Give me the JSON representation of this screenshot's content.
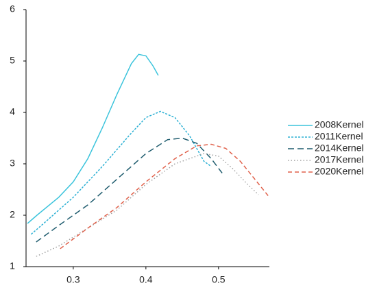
{
  "chart_data": {
    "type": "line",
    "xlim": [
      0.235,
      0.57
    ],
    "xticks": [
      0.3,
      0.4,
      0.5
    ],
    "ylim": [
      1,
      6
    ],
    "yticks": [
      1,
      2,
      3,
      4,
      5,
      6
    ],
    "grid": false,
    "legend": "right",
    "series": [
      {
        "name": "2008Kernel",
        "color": "#3cc4dc",
        "dash": "solid",
        "x": [
          0.237,
          0.25,
          0.28,
          0.3,
          0.32,
          0.34,
          0.36,
          0.38,
          0.39,
          0.4,
          0.41,
          0.417
        ],
        "values": [
          1.84,
          2.0,
          2.35,
          2.65,
          3.1,
          3.7,
          4.35,
          4.95,
          5.13,
          5.1,
          4.9,
          4.72
        ]
      },
      {
        "name": "2011Kernel",
        "color": "#2bb0d4",
        "dash": "3,2",
        "x": [
          0.242,
          0.26,
          0.3,
          0.34,
          0.38,
          0.4,
          0.42,
          0.44,
          0.46,
          0.48,
          0.49
        ],
        "values": [
          1.63,
          1.85,
          2.35,
          2.95,
          3.6,
          3.9,
          4.02,
          3.9,
          3.55,
          3.05,
          2.95
        ]
      },
      {
        "name": "2014Kernel",
        "color": "#1f5c6e",
        "dash": "9,5",
        "x": [
          0.249,
          0.28,
          0.32,
          0.36,
          0.4,
          0.43,
          0.45,
          0.47,
          0.49,
          0.505
        ],
        "values": [
          1.48,
          1.8,
          2.2,
          2.7,
          3.2,
          3.47,
          3.5,
          3.4,
          3.1,
          2.82
        ]
      },
      {
        "name": "2017Kernel",
        "color": "#a0a0a0",
        "dash": "1.5,3",
        "x": [
          0.249,
          0.28,
          0.32,
          0.36,
          0.4,
          0.44,
          0.48,
          0.5,
          0.52,
          0.54,
          0.555
        ],
        "values": [
          1.2,
          1.4,
          1.75,
          2.1,
          2.6,
          3.0,
          3.2,
          3.15,
          2.9,
          2.6,
          2.4
        ]
      },
      {
        "name": "2020Kernel",
        "color": "#e0604a",
        "dash": "6,4",
        "x": [
          0.282,
          0.32,
          0.36,
          0.4,
          0.44,
          0.47,
          0.49,
          0.51,
          0.53,
          0.55,
          0.57
        ],
        "values": [
          1.35,
          1.75,
          2.15,
          2.65,
          3.1,
          3.35,
          3.38,
          3.3,
          3.05,
          2.7,
          2.35
        ]
      }
    ]
  }
}
